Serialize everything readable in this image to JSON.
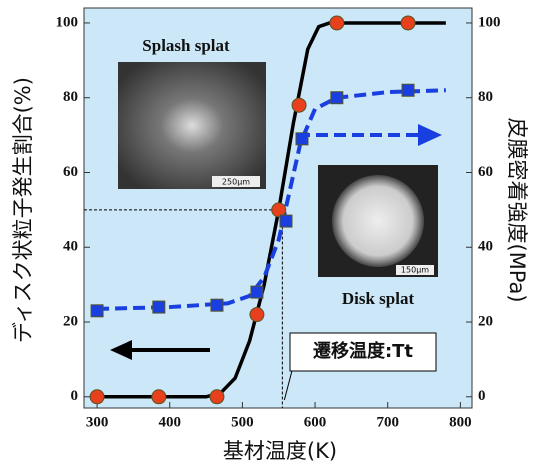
{
  "chart_data": {
    "type": "line",
    "xlabel": "基材温度(K)",
    "ylabel": "ディスク状粒子発生割合(%)",
    "y2label": "皮膜密着強度(MPa)",
    "xlim": [
      282,
      816
    ],
    "xticks": [
      300,
      400,
      500,
      600,
      700,
      800
    ],
    "ylim": [
      -3,
      104
    ],
    "yticks": [
      0,
      20,
      40,
      60,
      80,
      100
    ],
    "y2lim": [
      -3,
      104
    ],
    "y2ticks": [
      0,
      20,
      40,
      60,
      80,
      100
    ],
    "series": [
      {
        "color": "#e8401c",
        "marker": "circle",
        "x": [
          300,
          385,
          465,
          520,
          550,
          578,
          630,
          728
        ],
        "values": [
          0,
          0,
          0,
          22,
          50,
          78,
          100,
          100
        ]
      },
      {
        "color": "#000000",
        "dash": false,
        "x": [
          300,
          450,
          470,
          490,
          510,
          530,
          550,
          570,
          590,
          605,
          620,
          700,
          780
        ],
        "values": [
          0,
          0,
          1,
          5,
          15,
          30,
          50,
          73,
          93,
          99,
          100,
          100,
          100
        ]
      },
      {
        "color": "#1a3fe0",
        "marker": "square",
        "axis": "y2",
        "x": [
          300,
          385,
          465,
          520,
          560,
          582,
          630,
          728
        ],
        "values": [
          23,
          24,
          24.5,
          28,
          47,
          69,
          80,
          82
        ]
      },
      {
        "color": "#1a3fe0",
        "dash": true,
        "axis": "y2",
        "x": [
          300,
          400,
          480,
          510,
          530,
          550,
          565,
          580,
          600,
          630,
          700,
          780
        ],
        "values": [
          23.5,
          24,
          25,
          27,
          32,
          42,
          55,
          68,
          77,
          80,
          81.5,
          82
        ]
      }
    ],
    "annotations": {
      "splash": "Splash splat",
      "disk": "Disk splat",
      "splash_scale": "250μm",
      "disk_scale": "150μm"
    },
    "transition": {
      "label": "遷移温度:Tt",
      "x": 555,
      "y": 50
    }
  }
}
